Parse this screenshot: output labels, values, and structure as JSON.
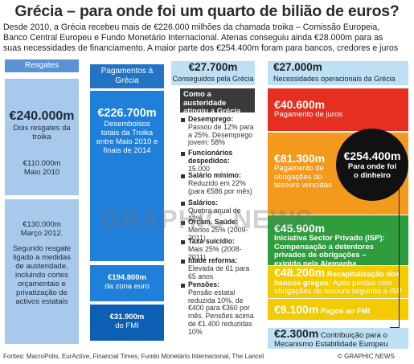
{
  "title": "Grécia – para onde foi um quarto de bilião de euros?",
  "intro": {
    "line1": "Desde 2010, a Grécia recebeu mais de €226.000 milhões da chamada troika – Comissão Europeia,",
    "line2": "Banco Central Europeu e Fundo Monetário Internacional. Atenas conseguiu aindа €28.000m para as",
    "line3": "suas necessidades de financiamento. A maior parte dos €254.400m foram para bancos, credores e juros"
  },
  "col_resgates": {
    "header": "Resgates",
    "total": "€240.000m",
    "total_label": "Dois resgates da troika",
    "first_amount": "€110.000m",
    "first_date": "Maio 2010",
    "second_amount": "€130.000m",
    "second_date": "Março 2012.",
    "second_note": "Segundo resgate ligado a medidas de austeridade, incluindo cortes orçamentais e privatização de activos estatais"
  },
  "col_pagamentos": {
    "header": "Pagamentos à Grécia",
    "total": "€226.700m",
    "total_label": "Desembolsos totais da Troika entre Maio 2010 e finais de 2014",
    "euro_amount": "€194.800m",
    "euro_label": "da zona euro",
    "fmi_amount": "€31.900m",
    "fmi_label": "do FMI"
  },
  "col_conseguidos": {
    "amount": "€27.700m",
    "label": "Conseguidos pela Grécia",
    "austerity_header": "Como a austeridade atingiu a Grécia",
    "items": [
      {
        "title": "Desemprego:",
        "text": "Passou de 12% para a 25%. Desemprego jovem: 58%"
      },
      {
        "title": "Funcionários despedidos:",
        "text": "15.000"
      },
      {
        "title": "Salário mínimo:",
        "text": "Reduzido em 22% (para €586 por mês)"
      },
      {
        "title": "Salários:",
        "text": "Quebra anual de 12%"
      },
      {
        "title": "Orçam. Saúde:",
        "text": "Menos 25% (2009-2011)"
      },
      {
        "title": "Taxa suicídio:",
        "text": "Mais 25% (2008-2011)"
      },
      {
        "title": "Idade reforma:",
        "text": "Elevada de 61 para 65 anos"
      },
      {
        "title": "Pensões:",
        "text": "Pensão estatal reduzida 10%, de €400 para €360 por mês. Pensões acima de €1.400 reduzidas 10%"
      }
    ]
  },
  "col_necessidades": {
    "amount": "€27.000m",
    "label": "Necessidades operacionais da Grécia",
    "juros_amount": "€40.600m",
    "juros_label": "Pagamento de juros",
    "obrig_amount": "€81.300m",
    "obrig_label": "Pagamento de obrigações do tesouro vencidas",
    "isp_amount": "€45.900m",
    "isp_label": "Iniciativa Sector Privado (ISP): Compensação a detentores privados de obrigações – exigido pela Alemanha",
    "banks_amount": "€48.200m",
    "banks_title": "Recapitalização dos bancos gregos:",
    "banks_label": "Após perdas com obrigações do tesouro segundo a ISP",
    "fmi_amount": "€9.100m",
    "fmi_label": "Pagos ao FMI",
    "mee_amount": "€2.300m",
    "mee_label": "Contribuição para o Mecanismo Estabilidade Europeu"
  },
  "circle": {
    "amount": "€254.400m",
    "label": "Para onde foi o dinheiro"
  },
  "watermark": "GRAPHIC NEWS",
  "sources": "Fontes: MacroPolis, EurActive, Financial Times, Fundo Monetário Internacional, The Lancet",
  "credit": "© GRAPHIC NEWS",
  "colors": {
    "light_blue": "#a9c9ec",
    "mid_blue": "#1f7fd9",
    "red": "#e53020",
    "orange": "#f39a1d",
    "green": "#2f9c3e",
    "yellow": "#f2cb00",
    "pale": "#bde0f5"
  }
}
